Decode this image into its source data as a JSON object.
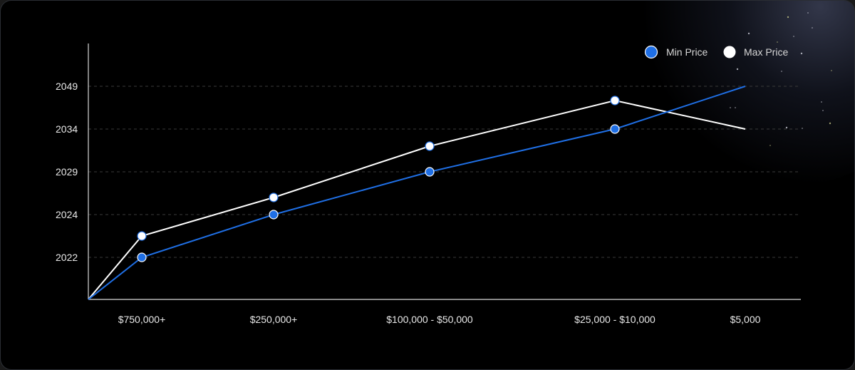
{
  "chart_data": {
    "type": "line",
    "categories": [
      "$750,000+",
      "$250,000+",
      "$100,000 - $50,000",
      "$25,000 - $10,000",
      "$5,000"
    ],
    "yticks": [
      "2022",
      "2024",
      "2029",
      "2034",
      "2049"
    ],
    "series": [
      {
        "name": "Min Price",
        "values": [
          2022,
          2024,
          2029,
          2034,
          2049
        ],
        "color": "#1f6fe5",
        "marker": "#1f6fe5"
      },
      {
        "name": "Max Price",
        "values": [
          2023,
          2026,
          2032,
          2044,
          2034
        ],
        "color": "#ffffff",
        "marker": "#ffffff"
      }
    ],
    "grid": true,
    "grid_style": "dashed",
    "legend": "top-right",
    "xlabel": "",
    "ylabel": ""
  },
  "colors": {
    "background": "#000000",
    "axis": "#d9d9d9",
    "grid": "#3a3a3a",
    "min": "#1f6fe5",
    "max": "#ffffff"
  }
}
